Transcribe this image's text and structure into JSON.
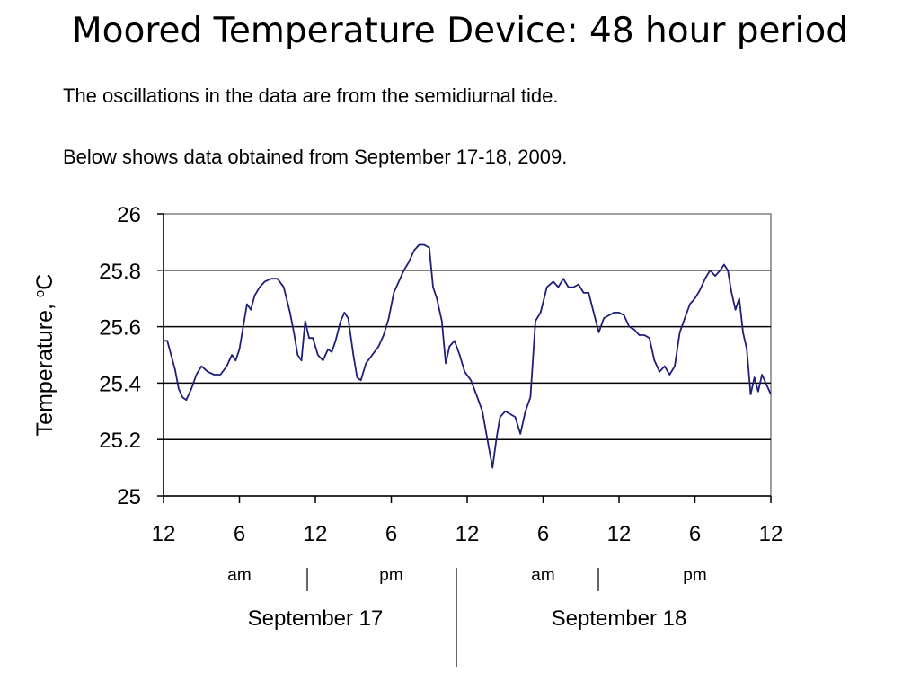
{
  "slide": {
    "title": "Moored Temperature Device: 48 hour period",
    "subtitle_1": "The oscillations in the data are from the semidiurnal tide.",
    "subtitle_2": "Below shows data obtained from September 17-18, 2009."
  },
  "colors": {
    "line": "#1f1f7a",
    "grid": "#000000",
    "frame": "#808080"
  },
  "chart_data": {
    "type": "line",
    "title": "",
    "xlabel": "",
    "ylabel": "Temperature, °C",
    "ylabel_parts": {
      "text": "Temperature, ",
      "superscript": "o",
      "unit": "C"
    },
    "xlim": [
      0,
      48
    ],
    "ylim": [
      25,
      26
    ],
    "grid": "horizontal",
    "yticks": [
      25,
      25.2,
      25.4,
      25.6,
      25.8,
      26
    ],
    "ytick_labels": [
      "25",
      "25.2",
      "25.4",
      "25.6",
      "25.8",
      "26"
    ],
    "xticks": [
      0,
      6,
      12,
      18,
      24,
      30,
      36,
      42,
      48
    ],
    "xtick_labels": [
      "12",
      "6",
      "12",
      "6",
      "12",
      "6",
      "12",
      "6",
      "12"
    ],
    "period_labels": [
      {
        "text": "am",
        "x": 6
      },
      {
        "text": "pm",
        "x": 18
      },
      {
        "text": "am",
        "x": 30
      },
      {
        "text": "pm",
        "x": 42
      }
    ],
    "date_labels": [
      {
        "text": "September 17",
        "x": 12
      },
      {
        "text": "September 18",
        "x": 36
      }
    ],
    "series": [
      {
        "name": "",
        "x": [
          0.0,
          0.3,
          0.6,
          0.9,
          1.2,
          1.5,
          1.8,
          2.2,
          2.6,
          3.0,
          3.5,
          4.0,
          4.5,
          5.0,
          5.4,
          5.7,
          6.0,
          6.3,
          6.6,
          6.9,
          7.2,
          7.6,
          8.0,
          8.5,
          9.0,
          9.5,
          10.0,
          10.3,
          10.6,
          10.9,
          11.2,
          11.5,
          11.8,
          12.2,
          12.6,
          13.0,
          13.3,
          13.6,
          14.0,
          14.3,
          14.6,
          15.0,
          15.3,
          15.6,
          16.0,
          16.5,
          17.0,
          17.4,
          17.8,
          18.2,
          18.6,
          19.0,
          19.4,
          19.8,
          20.2,
          20.6,
          21.0,
          21.3,
          21.6,
          22.0,
          22.3,
          22.6,
          23.0,
          23.4,
          23.8,
          24.3,
          24.8,
          25.2,
          25.6,
          26.0,
          26.3,
          26.6,
          27.0,
          27.4,
          27.8,
          28.2,
          28.6,
          29.0,
          29.4,
          29.8,
          30.3,
          30.8,
          31.2,
          31.6,
          32.0,
          32.4,
          32.8,
          33.2,
          33.6,
          34.0,
          34.4,
          34.8,
          35.2,
          35.6,
          36.0,
          36.4,
          36.8,
          37.2,
          37.6,
          38.0,
          38.4,
          38.8,
          39.2,
          39.6,
          40.0,
          40.4,
          40.8,
          41.2,
          41.6,
          42.0,
          42.4,
          42.8,
          43.2,
          43.6,
          44.0,
          44.3,
          44.6,
          44.9,
          45.2,
          45.5,
          45.8,
          46.1,
          46.4,
          46.7,
          47.0,
          47.3,
          47.6,
          48.0
        ],
        "values": [
          25.55,
          25.55,
          25.5,
          25.45,
          25.38,
          25.35,
          25.34,
          25.38,
          25.43,
          25.46,
          25.44,
          25.43,
          25.43,
          25.46,
          25.5,
          25.48,
          25.52,
          25.6,
          25.68,
          25.66,
          25.71,
          25.74,
          25.76,
          25.77,
          25.77,
          25.74,
          25.65,
          25.58,
          25.5,
          25.48,
          25.62,
          25.56,
          25.56,
          25.5,
          25.48,
          25.52,
          25.51,
          25.55,
          25.62,
          25.65,
          25.63,
          25.5,
          25.42,
          25.41,
          25.47,
          25.5,
          25.53,
          25.57,
          25.63,
          25.72,
          25.76,
          25.8,
          25.83,
          25.87,
          25.89,
          25.89,
          25.88,
          25.74,
          25.7,
          25.62,
          25.47,
          25.53,
          25.55,
          25.5,
          25.44,
          25.41,
          25.35,
          25.3,
          25.2,
          25.1,
          25.2,
          25.28,
          25.3,
          25.29,
          25.28,
          25.22,
          25.3,
          25.35,
          25.62,
          25.65,
          25.74,
          25.76,
          25.74,
          25.77,
          25.74,
          25.74,
          25.75,
          25.72,
          25.72,
          25.65,
          25.58,
          25.63,
          25.64,
          25.65,
          25.65,
          25.64,
          25.6,
          25.59,
          25.57,
          25.57,
          25.56,
          25.48,
          25.44,
          25.46,
          25.43,
          25.46,
          25.58,
          25.63,
          25.68,
          25.7,
          25.73,
          25.77,
          25.8,
          25.78,
          25.8,
          25.82,
          25.8,
          25.72,
          25.66,
          25.7,
          25.58,
          25.52,
          25.36,
          25.42,
          25.37,
          25.43,
          25.4,
          25.36
        ]
      }
    ]
  }
}
